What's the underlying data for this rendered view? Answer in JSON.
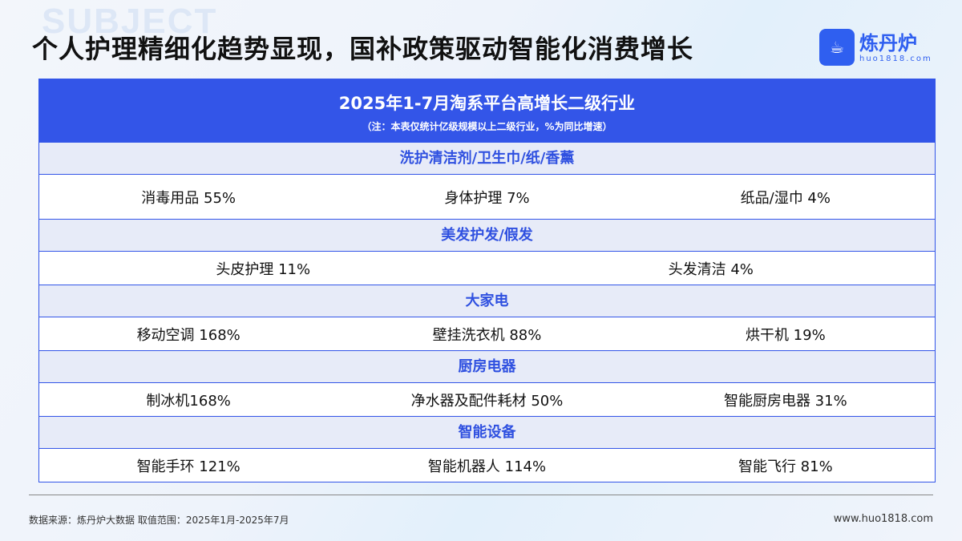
{
  "watermark": "SUBJECT",
  "title": "个人护理精细化趋势显现，国补政策驱动智能化消费增长",
  "logo": {
    "name": "炼丹炉",
    "url": "huo1818.com",
    "icon": "cauldron-icon",
    "color": "#2f5ff0"
  },
  "table": {
    "title": "2025年1-7月淘系平台高增长二级行业",
    "note": "（注：本表仅统计亿级规模以上二级行业，%为同比增速）",
    "groups": [
      {
        "category": "洗护清洁剂/卫生巾/纸/香薰",
        "items": [
          "消毒用品 55%",
          "身体护理 7%",
          "纸品/湿巾 4%"
        ]
      },
      {
        "category": "美发护发/假发",
        "items": [
          "头皮护理 11%",
          "头发清洁 4%"
        ]
      },
      {
        "category": "大家电",
        "items": [
          "移动空调 168%",
          "壁挂洗衣机 88%",
          "烘干机 19%"
        ]
      },
      {
        "category": "厨房电器",
        "items": [
          "制冰机168%",
          "净水器及配件耗材 50%",
          "智能厨房电器 31%"
        ]
      },
      {
        "category": "智能设备",
        "items": [
          "智能手环 121%",
          "智能机器人 114%",
          "智能飞行 81%"
        ]
      }
    ]
  },
  "footer": {
    "source": "数据来源：炼丹炉大数据   取值范围：2025年1月-2025年7月",
    "site": "www.huo1818.com"
  },
  "colors": {
    "header": "#3355e8",
    "category_bg": "#e7ebf8",
    "category_text": "#2f50e0"
  }
}
